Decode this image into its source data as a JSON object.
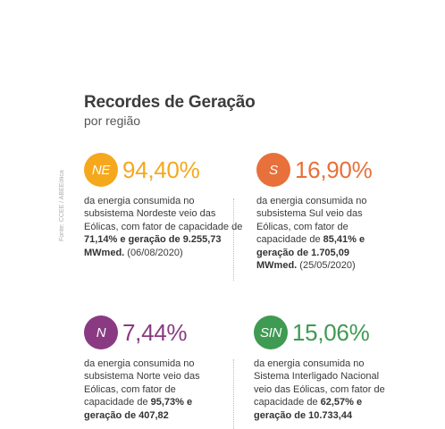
{
  "header": {
    "title": "Recordes de Geração",
    "subtitle": "por região"
  },
  "source_note": "Fonte: CCEE / ABEEólica",
  "colors": {
    "ne": "#f5a81c",
    "s": "#e8703a",
    "n": "#8a3a82",
    "sin": "#3f9a52"
  },
  "records": [
    {
      "badge": "NE",
      "percent": "94,40%",
      "text": "da energia consumida no subsistema Nordeste veio das Eólicas, com fator de capacidade de ",
      "cap": "71,14%",
      "mid": " e geração de ",
      "gen": "9.255,73 MWmed.",
      "date": " (06/08/2020)"
    },
    {
      "badge": "S",
      "percent": "16,90%",
      "text": "da energia consumida no subsistema Sul veio das Eólicas, com fator de capacidade de  ",
      "cap": "85,41%",
      "mid": " e geração de ",
      "gen": "1.705,09 MWmed.",
      "date": " (25/05/2020)"
    },
    {
      "badge": "N",
      "percent": "7,44%",
      "text": "da energia consumida no subsistema Norte veio das Eólicas, com fator de capacidade de ",
      "cap": "95,73%",
      "mid": " e geração de ",
      "gen": "407,82",
      "date": ""
    },
    {
      "badge": "SIN",
      "percent": "15,06%",
      "text": "da energia consumida no Sistema Interligado Nacional veio das Eólicas, com fator de capacidade de ",
      "cap": "62,57%",
      "mid": " e geração de ",
      "gen": "10.733,44",
      "date": ""
    }
  ]
}
